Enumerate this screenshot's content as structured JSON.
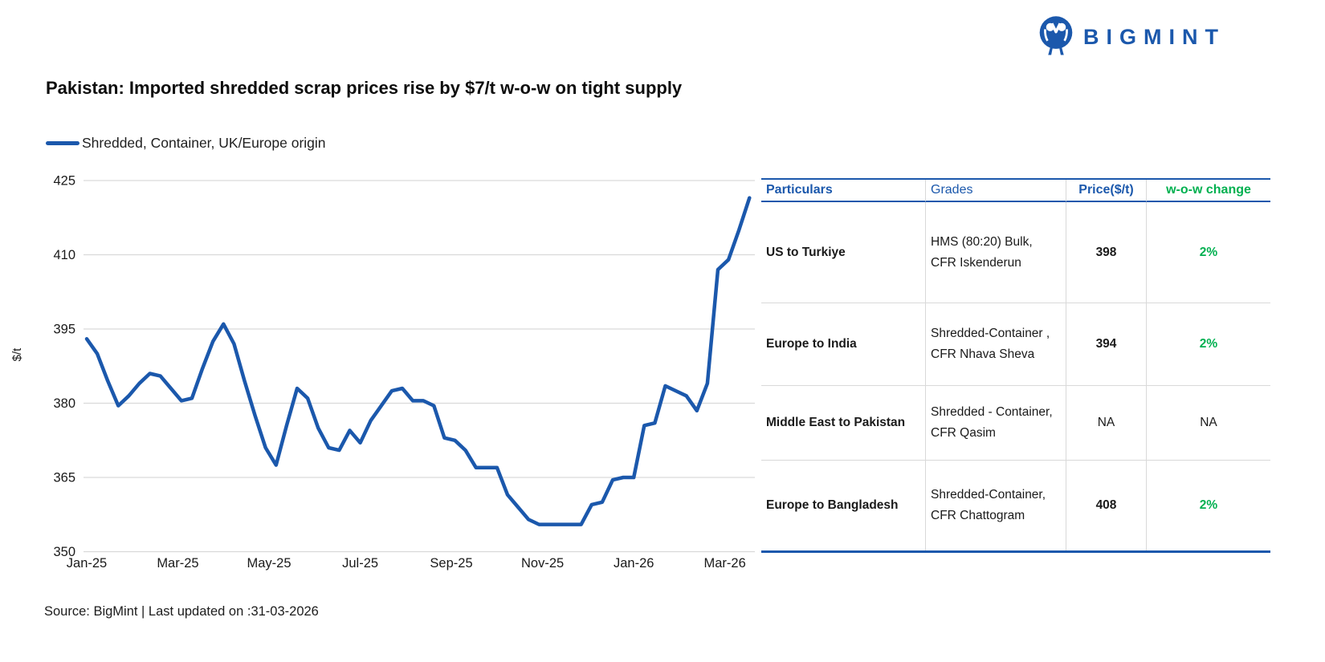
{
  "logo": {
    "text": "BIGMINT"
  },
  "title": "Pakistan: Imported shredded scrap prices rise by $7/t w-o-w on tight supply",
  "legend": {
    "label": "Shredded, Container, UK/Europe origin"
  },
  "chart_data": {
    "type": "line",
    "title": "Pakistan: Imported shredded scrap prices rise by $7/t w-o-w on tight supply",
    "ylabel": "$/t",
    "xlabel": "",
    "ylim": [
      350,
      425
    ],
    "y_ticks": [
      425,
      410,
      395,
      380,
      365,
      350
    ],
    "x_ticks": [
      "Jan-25",
      "Mar-25",
      "May-25",
      "Jul-25",
      "Sep-25",
      "Nov-25",
      "Jan-26",
      "Mar-26"
    ],
    "x_tick_week_positions": [
      0,
      8.66,
      17.33,
      26,
      34.66,
      43.33,
      52,
      60.66
    ],
    "grid": "horizontal",
    "legend_position": "top-left",
    "line_color": "#1B58AC",
    "series": [
      {
        "name": "Shredded, Container, UK/Europe origin",
        "frequency": "weekly",
        "values": [
          393,
          390,
          384.5,
          379.5,
          381.5,
          384,
          386,
          385.5,
          383,
          380.5,
          381,
          387,
          392.5,
          396,
          392,
          384.5,
          377.5,
          371,
          367.5,
          375.5,
          383,
          381,
          375,
          371,
          370.5,
          374.5,
          372,
          376.5,
          379.5,
          382.5,
          383,
          380.5,
          380.5,
          379.5,
          373,
          372.5,
          370.5,
          367,
          367,
          367,
          361.5,
          359,
          356.5,
          355.5,
          355.5,
          355.5,
          355.5,
          355.5,
          359.5,
          360,
          364.5,
          365,
          365,
          375.5,
          376,
          383.5,
          382.5,
          381.5,
          378.5,
          384,
          407,
          409,
          415,
          421.5
        ]
      }
    ]
  },
  "table": {
    "headers": [
      "Particulars",
      "Grades",
      "Price($/t)",
      "w-o-w change"
    ],
    "rows": [
      {
        "particulars": "US to Turkiye",
        "grade_line1": "HMS (80:20) Bulk,",
        "grade_line2": "CFR Iskenderun",
        "price": "398",
        "change": "2%"
      },
      {
        "particulars": "Europe to India",
        "grade_line1": "Shredded-Container ,",
        "grade_line2": "CFR Nhava Sheva",
        "price": "394",
        "change": "2%"
      },
      {
        "particulars": "Middle East to Pakistan",
        "grade_line1": "Shredded - Container,",
        "grade_line2": "CFR Qasim",
        "price": "NA",
        "change": "NA"
      },
      {
        "particulars": "Europe to Bangladesh",
        "grade_line1": "Shredded-Container,",
        "grade_line2": "CFR Chattogram",
        "price": "408",
        "change": "2%"
      }
    ]
  },
  "footer": {
    "source": "Source: BigMint | Last updated on :31-03-2026"
  },
  "colors": {
    "brand_blue": "#1B58AC",
    "positive_green": "#00B050",
    "gridline": "#D9D9D9"
  }
}
